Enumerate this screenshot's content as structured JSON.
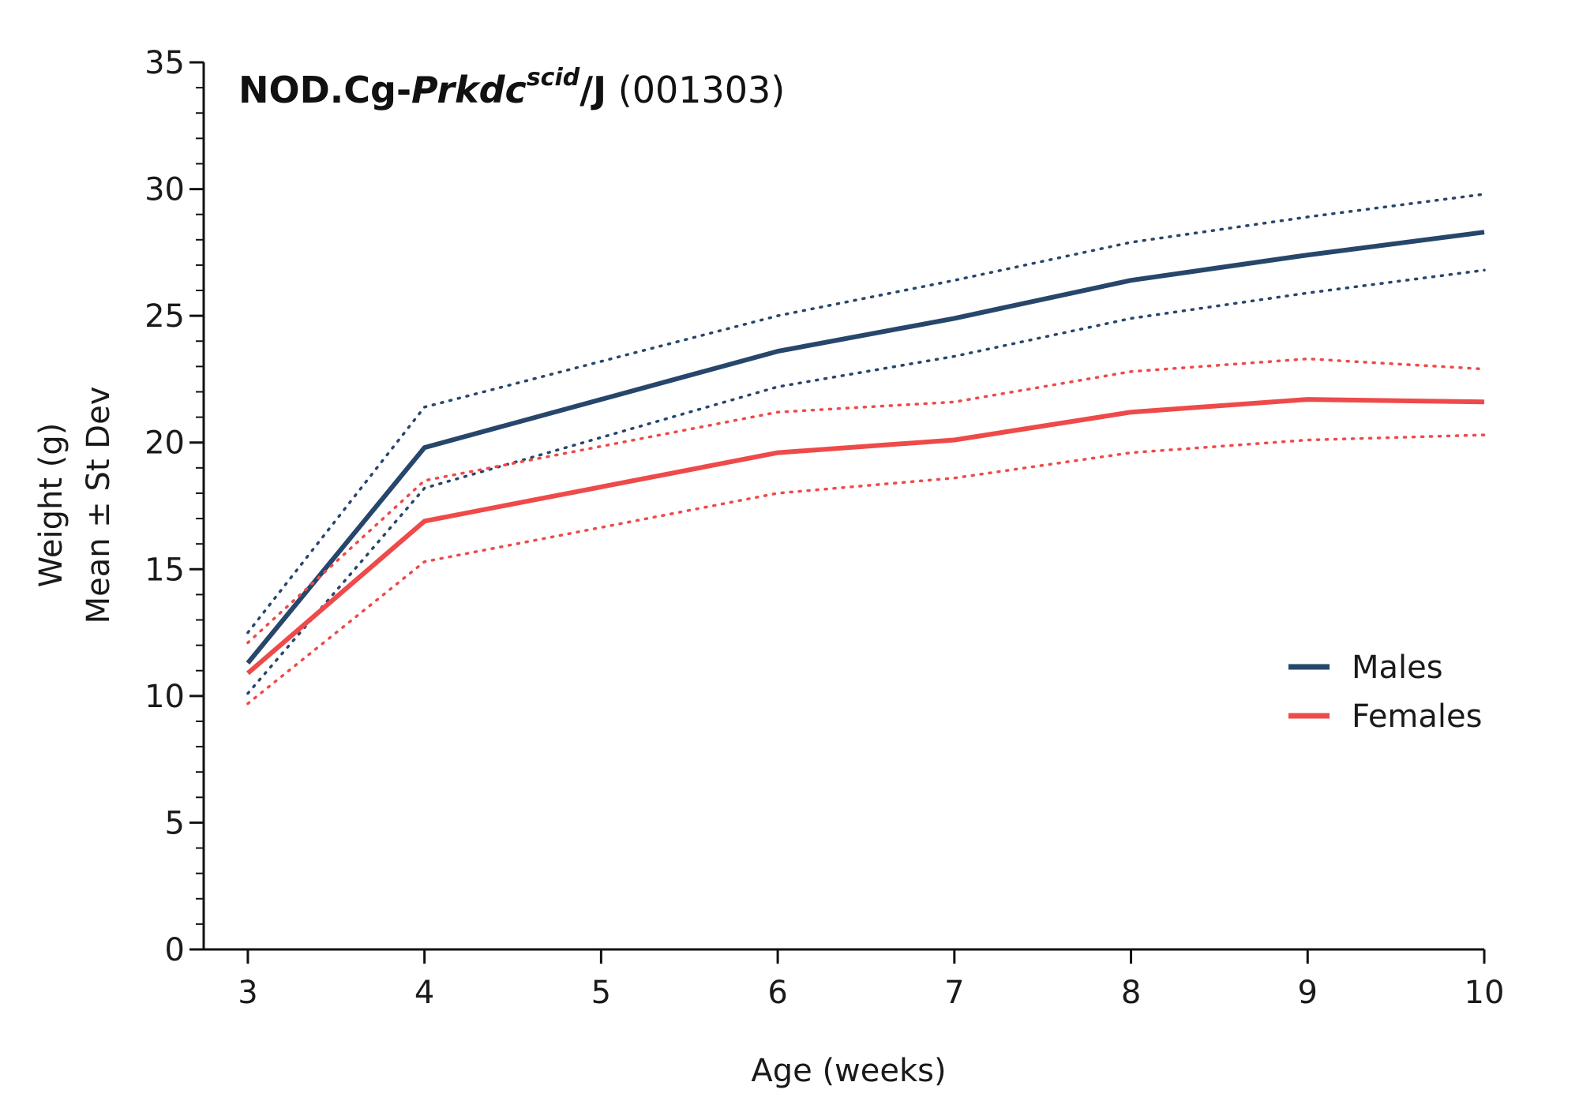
{
  "chart_data": {
    "type": "line",
    "title": {
      "strain_prefix": "NOD.Cg-",
      "gene": "Prkdc",
      "allele": "scid",
      "suffix": "/J",
      "stock_number": " (001303)"
    },
    "xlabel": "Age (weeks)",
    "ylabel_line1": "Weight (g)",
    "ylabel_line2": "Mean ± St Dev",
    "x": [
      3,
      4,
      6,
      7,
      8,
      9,
      10
    ],
    "x_ticks": [
      3,
      4,
      5,
      6,
      7,
      8,
      9,
      10
    ],
    "y_ticks": [
      0,
      5,
      10,
      15,
      20,
      25,
      30,
      35
    ],
    "xlim": [
      2.75,
      10
    ],
    "ylim": [
      0,
      35
    ],
    "y_minor_step": 1,
    "legend_position": "right-middle",
    "series": [
      {
        "name": "Males",
        "color": "#27466b",
        "mean": [
          11.3,
          19.8,
          23.6,
          24.9,
          26.4,
          27.4,
          28.3
        ],
        "upper": [
          12.5,
          21.4,
          25.0,
          26.4,
          27.9,
          28.9,
          29.8
        ],
        "lower": [
          10.1,
          18.2,
          22.2,
          23.4,
          24.9,
          25.9,
          26.8
        ]
      },
      {
        "name": "Females",
        "color": "#ee4a4a",
        "mean": [
          10.9,
          16.9,
          19.6,
          20.1,
          21.2,
          21.7,
          21.6
        ],
        "upper": [
          12.1,
          18.5,
          21.2,
          21.6,
          22.8,
          23.3,
          22.9
        ],
        "lower": [
          9.7,
          15.3,
          18.0,
          18.6,
          19.6,
          20.1,
          20.3
        ]
      }
    ]
  }
}
